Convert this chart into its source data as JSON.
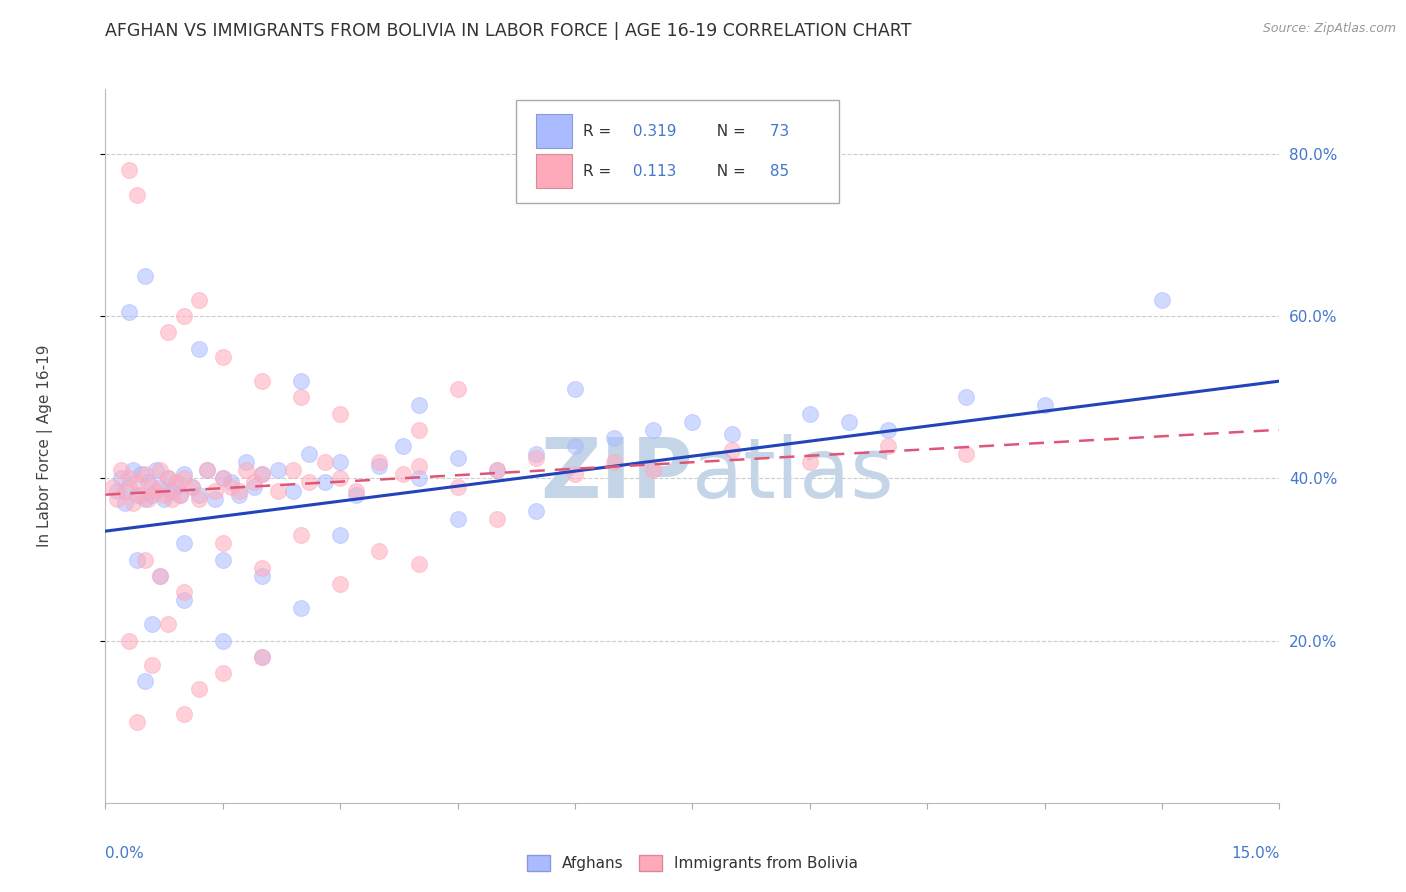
{
  "title": "AFGHAN VS IMMIGRANTS FROM BOLIVIA IN LABOR FORCE | AGE 16-19 CORRELATION CHART",
  "source": "Source: ZipAtlas.com",
  "ylabel": "In Labor Force | Age 16-19",
  "legend1_r": "0.319",
  "legend1_n": "73",
  "legend2_r": "0.113",
  "legend2_n": "85",
  "legend1_label": "Afghans",
  "legend2_label": "Immigrants from Bolivia",
  "xlim": [
    0.0,
    15.0
  ],
  "ylim": [
    0.0,
    88.0
  ],
  "yticks": [
    20.0,
    40.0,
    60.0,
    80.0
  ],
  "blue_color": "#aabbff",
  "pink_color": "#ffaabb",
  "blue_line_color": "#2244bb",
  "pink_line_color": "#dd5577",
  "grid_color": "#cccccc",
  "watermark_zip_color": "#c5d5e8",
  "watermark_atlas_color": "#c5d5e8",
  "blue_scatter": [
    [
      0.15,
      38.5
    ],
    [
      0.2,
      40.0
    ],
    [
      0.25,
      37.0
    ],
    [
      0.3,
      39.0
    ],
    [
      0.35,
      41.0
    ],
    [
      0.4,
      38.0
    ],
    [
      0.45,
      40.5
    ],
    [
      0.5,
      37.5
    ],
    [
      0.55,
      39.5
    ],
    [
      0.6,
      38.0
    ],
    [
      0.65,
      41.0
    ],
    [
      0.7,
      39.0
    ],
    [
      0.75,
      37.5
    ],
    [
      0.8,
      40.0
    ],
    [
      0.85,
      38.5
    ],
    [
      0.9,
      39.0
    ],
    [
      0.95,
      38.0
    ],
    [
      1.0,
      40.5
    ],
    [
      1.1,
      39.0
    ],
    [
      1.2,
      38.0
    ],
    [
      1.3,
      41.0
    ],
    [
      1.4,
      37.5
    ],
    [
      1.5,
      40.0
    ],
    [
      1.6,
      39.5
    ],
    [
      1.7,
      38.0
    ],
    [
      1.8,
      42.0
    ],
    [
      1.9,
      39.0
    ],
    [
      2.0,
      40.5
    ],
    [
      2.2,
      41.0
    ],
    [
      2.4,
      38.5
    ],
    [
      2.6,
      43.0
    ],
    [
      2.8,
      39.5
    ],
    [
      3.0,
      42.0
    ],
    [
      3.2,
      38.0
    ],
    [
      3.5,
      41.5
    ],
    [
      3.8,
      44.0
    ],
    [
      4.0,
      40.0
    ],
    [
      4.5,
      42.5
    ],
    [
      5.0,
      41.0
    ],
    [
      5.5,
      43.0
    ],
    [
      6.0,
      44.0
    ],
    [
      6.5,
      45.0
    ],
    [
      7.0,
      46.0
    ],
    [
      7.5,
      47.0
    ],
    [
      8.0,
      45.5
    ],
    [
      9.0,
      48.0
    ],
    [
      10.0,
      46.0
    ],
    [
      11.0,
      50.0
    ],
    [
      12.0,
      49.0
    ],
    [
      13.5,
      62.0
    ],
    [
      0.3,
      60.5
    ],
    [
      0.5,
      65.0
    ],
    [
      1.2,
      56.0
    ],
    [
      2.5,
      52.0
    ],
    [
      4.0,
      49.0
    ],
    [
      6.0,
      51.0
    ],
    [
      9.5,
      47.0
    ],
    [
      0.4,
      30.0
    ],
    [
      0.7,
      28.0
    ],
    [
      1.0,
      32.0
    ],
    [
      1.5,
      30.0
    ],
    [
      2.0,
      28.0
    ],
    [
      3.0,
      33.0
    ],
    [
      4.5,
      35.0
    ],
    [
      5.5,
      36.0
    ],
    [
      0.6,
      22.0
    ],
    [
      1.0,
      25.0
    ],
    [
      1.5,
      20.0
    ],
    [
      2.5,
      24.0
    ],
    [
      2.0,
      18.0
    ],
    [
      0.5,
      15.0
    ]
  ],
  "pink_scatter": [
    [
      0.1,
      39.0
    ],
    [
      0.15,
      37.5
    ],
    [
      0.2,
      41.0
    ],
    [
      0.25,
      38.5
    ],
    [
      0.3,
      40.0
    ],
    [
      0.35,
      37.0
    ],
    [
      0.4,
      39.5
    ],
    [
      0.45,
      38.0
    ],
    [
      0.5,
      40.5
    ],
    [
      0.55,
      37.5
    ],
    [
      0.6,
      39.0
    ],
    [
      0.65,
      38.5
    ],
    [
      0.7,
      41.0
    ],
    [
      0.75,
      38.0
    ],
    [
      0.8,
      40.0
    ],
    [
      0.85,
      37.5
    ],
    [
      0.9,
      39.5
    ],
    [
      0.95,
      38.0
    ],
    [
      1.0,
      40.0
    ],
    [
      1.1,
      39.0
    ],
    [
      1.2,
      37.5
    ],
    [
      1.3,
      41.0
    ],
    [
      1.4,
      38.5
    ],
    [
      1.5,
      40.0
    ],
    [
      1.6,
      39.0
    ],
    [
      1.7,
      38.5
    ],
    [
      1.8,
      41.0
    ],
    [
      1.9,
      39.5
    ],
    [
      2.0,
      40.5
    ],
    [
      2.2,
      38.5
    ],
    [
      2.4,
      41.0
    ],
    [
      2.6,
      39.5
    ],
    [
      2.8,
      42.0
    ],
    [
      3.0,
      40.0
    ],
    [
      3.2,
      38.5
    ],
    [
      3.5,
      42.0
    ],
    [
      3.8,
      40.5
    ],
    [
      4.0,
      41.5
    ],
    [
      4.5,
      39.0
    ],
    [
      5.0,
      41.0
    ],
    [
      5.5,
      42.5
    ],
    [
      6.0,
      40.5
    ],
    [
      6.5,
      42.0
    ],
    [
      7.0,
      41.0
    ],
    [
      8.0,
      43.5
    ],
    [
      9.0,
      42.0
    ],
    [
      10.0,
      44.0
    ],
    [
      11.0,
      43.0
    ],
    [
      0.3,
      78.0
    ],
    [
      0.4,
      75.0
    ],
    [
      1.0,
      60.0
    ],
    [
      1.2,
      62.0
    ],
    [
      0.8,
      58.0
    ],
    [
      1.5,
      55.0
    ],
    [
      2.0,
      52.0
    ],
    [
      2.5,
      50.0
    ],
    [
      3.0,
      48.0
    ],
    [
      4.0,
      46.0
    ],
    [
      4.5,
      51.0
    ],
    [
      0.5,
      30.0
    ],
    [
      0.7,
      28.0
    ],
    [
      1.0,
      26.0
    ],
    [
      1.5,
      32.0
    ],
    [
      2.0,
      29.0
    ],
    [
      2.5,
      33.0
    ],
    [
      3.0,
      27.0
    ],
    [
      3.5,
      31.0
    ],
    [
      4.0,
      29.5
    ],
    [
      5.0,
      35.0
    ],
    [
      0.3,
      20.0
    ],
    [
      0.6,
      17.0
    ],
    [
      0.8,
      22.0
    ],
    [
      1.2,
      14.0
    ],
    [
      1.5,
      16.0
    ],
    [
      2.0,
      18.0
    ],
    [
      0.4,
      10.0
    ],
    [
      1.0,
      11.0
    ]
  ],
  "blue_trend": [
    0.0,
    15.0,
    33.5,
    52.0
  ],
  "pink_trend": [
    0.0,
    15.0,
    38.0,
    46.0
  ]
}
